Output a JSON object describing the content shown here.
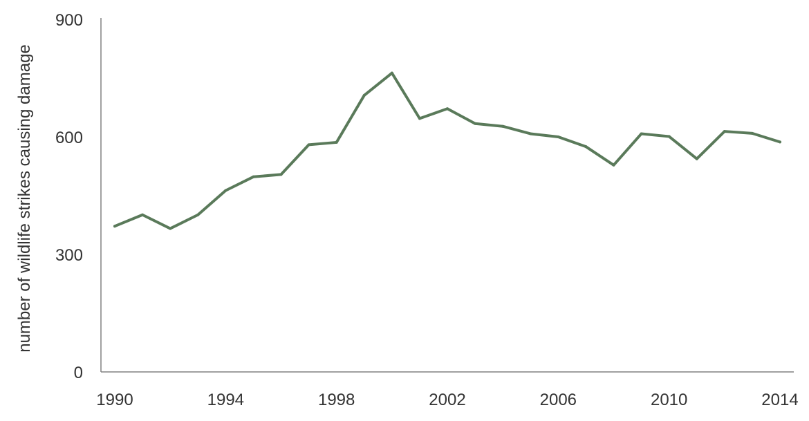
{
  "chart_data": {
    "type": "line",
    "title": "",
    "xlabel": "",
    "ylabel": "number of wildlife strikes causing damage",
    "x": [
      1990,
      1991,
      1992,
      1993,
      1994,
      1995,
      1996,
      1997,
      1998,
      1999,
      2000,
      2001,
      2002,
      2003,
      2004,
      2005,
      2006,
      2007,
      2008,
      2009,
      2010,
      2011,
      2012,
      2013,
      2014
    ],
    "series": [
      {
        "values": [
          372,
          401,
          366,
          401,
          463,
          498,
          504,
          580,
          586,
          706,
          763,
          647,
          672,
          634,
          627,
          608,
          600,
          575,
          528,
          608,
          601,
          544,
          614,
          609,
          587
        ],
        "color": "#5a7a5a"
      }
    ],
    "xlim": [
      1990,
      2014
    ],
    "ylim": [
      0,
      900
    ],
    "x_ticks": [
      "1990",
      "1994",
      "1998",
      "2002",
      "2006",
      "2010",
      "2014"
    ],
    "y_ticks": [
      "0",
      "300",
      "600",
      "900"
    ],
    "grid": false,
    "axis_color": "#808080"
  }
}
